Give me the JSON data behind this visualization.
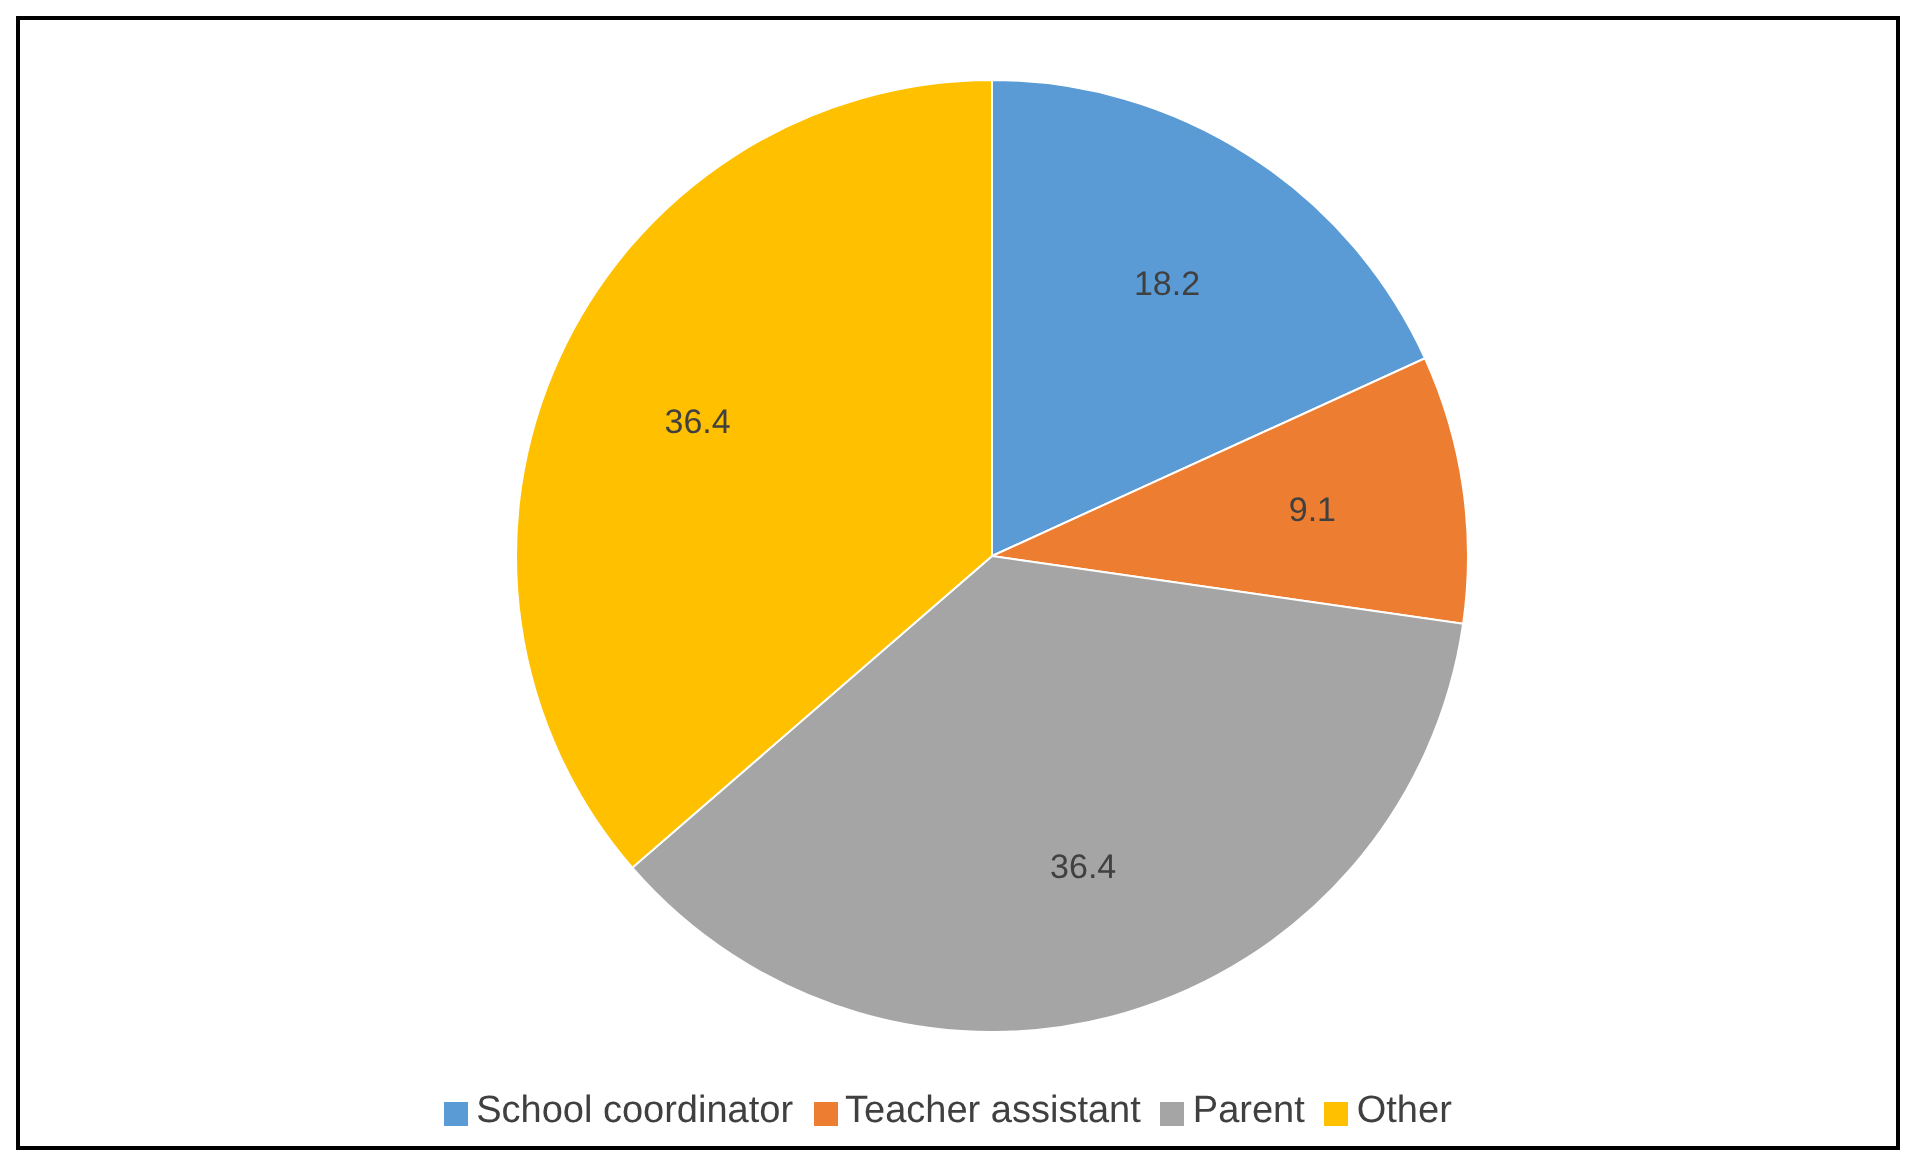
{
  "chart_data": {
    "type": "pie",
    "categories": [
      "School coordinator",
      "Teacher assistant",
      "Parent",
      "Other"
    ],
    "values": [
      18.2,
      9.1,
      36.4,
      36.4
    ],
    "colors": [
      "#5b9bd5",
      "#ed7d31",
      "#a5a5a5",
      "#ffc000"
    ],
    "data_labels": true,
    "legend": "bottom"
  }
}
